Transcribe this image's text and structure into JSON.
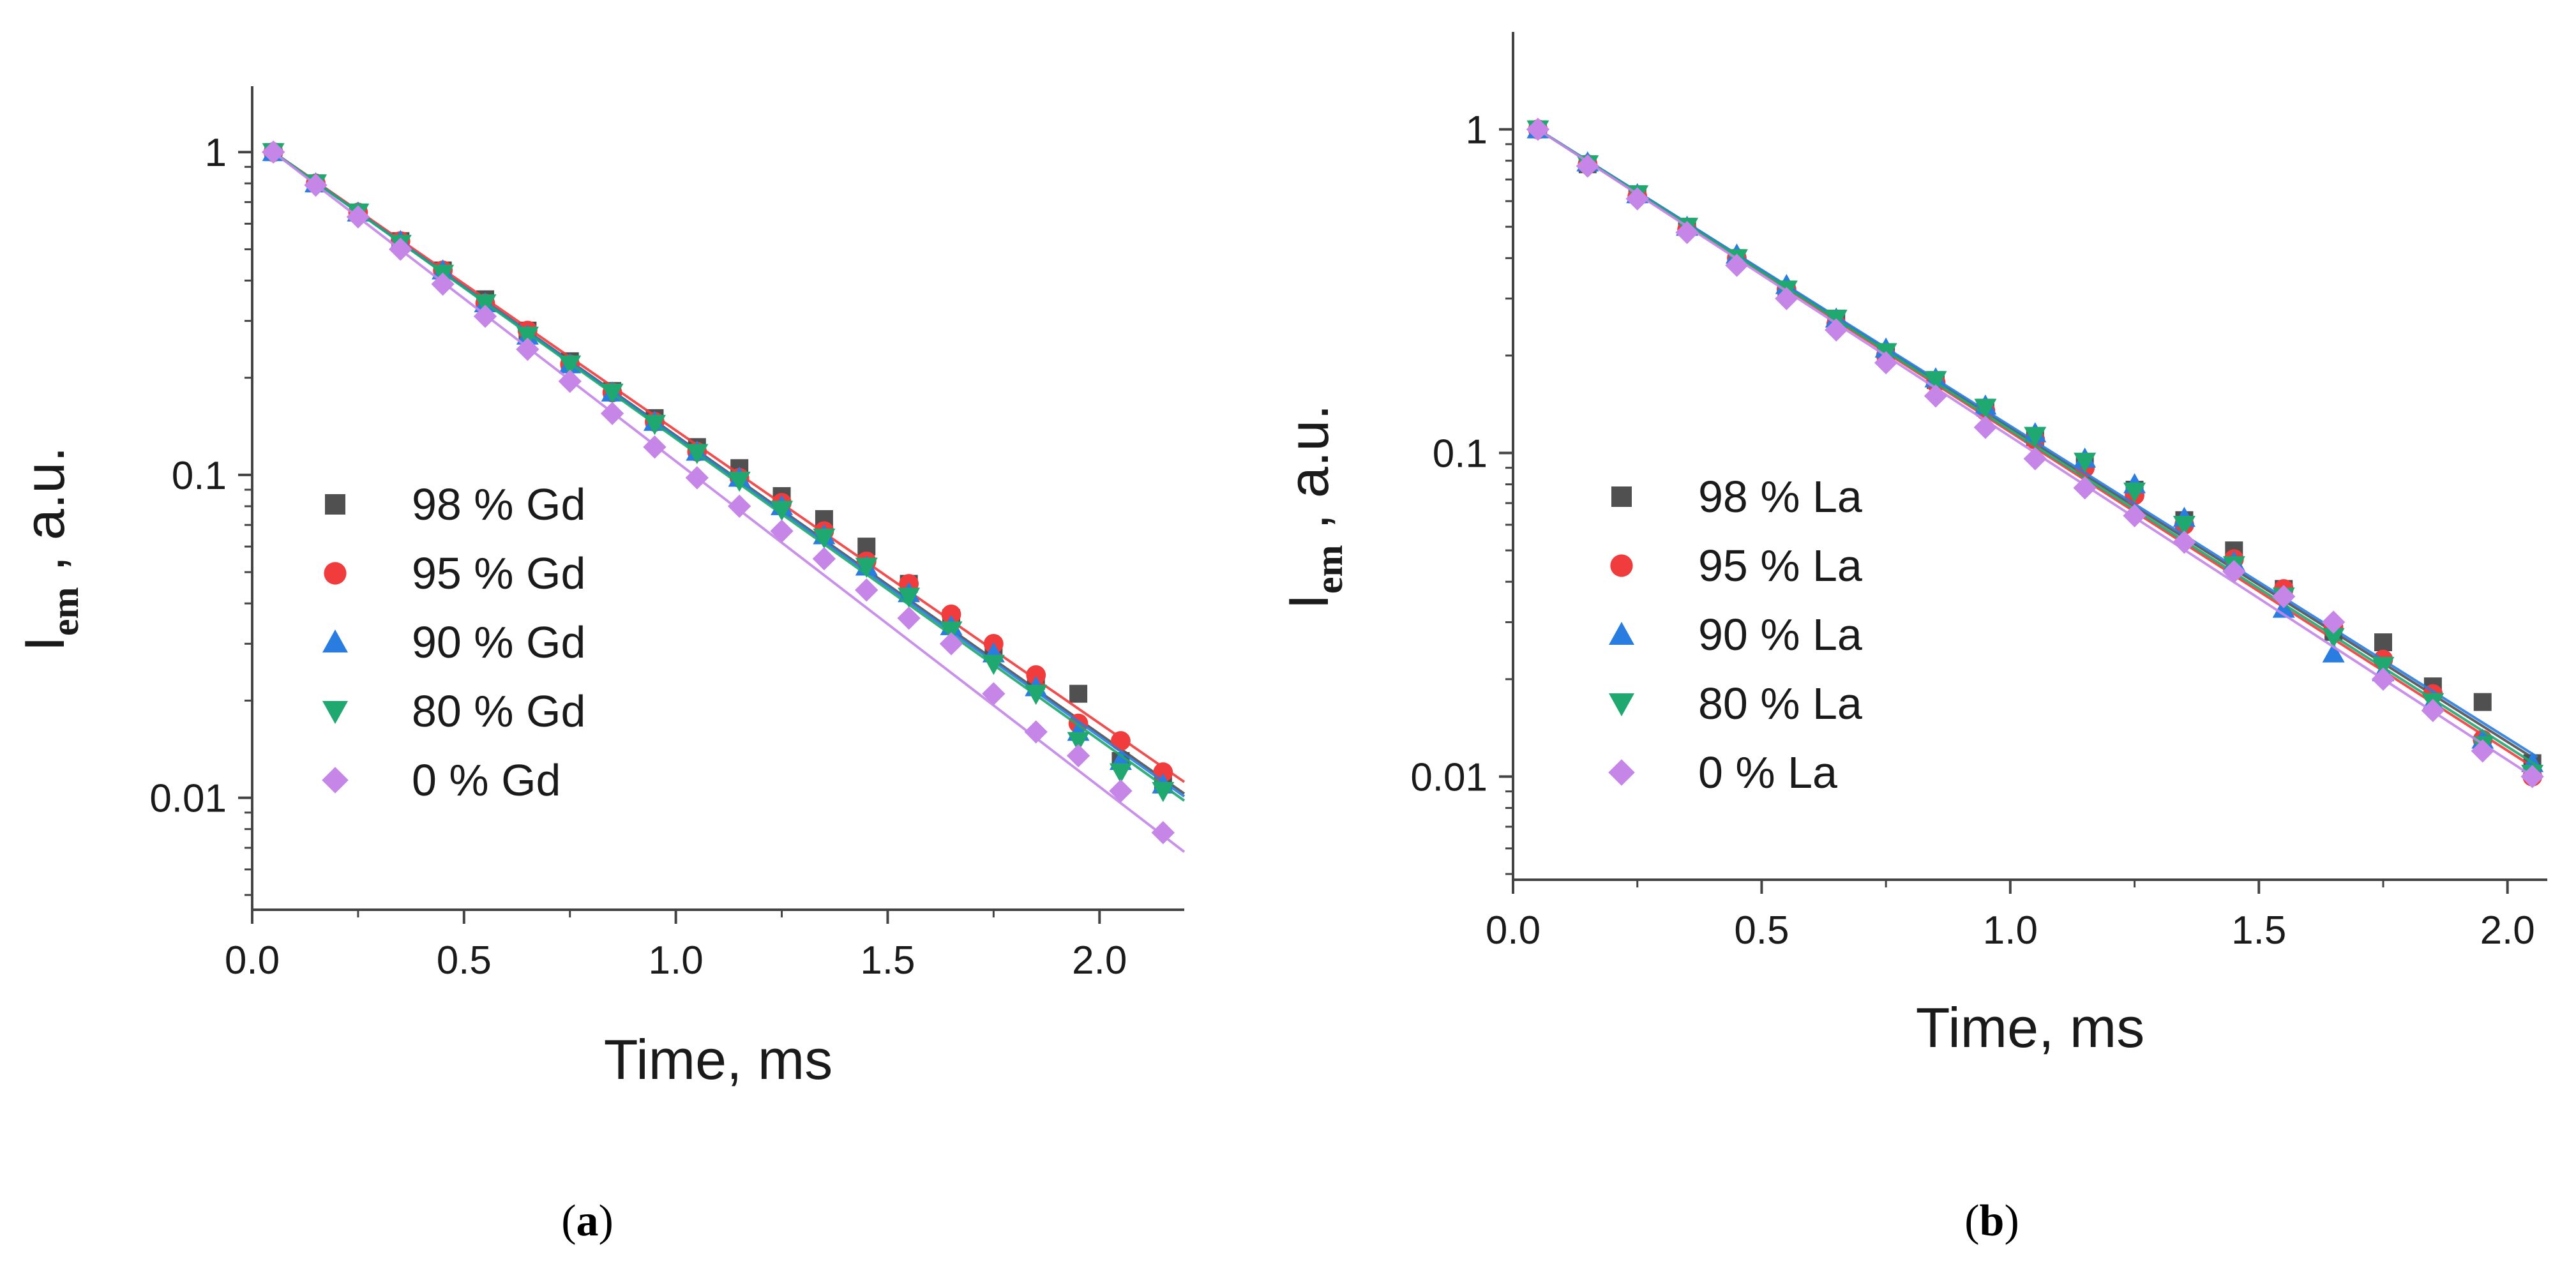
{
  "chart_data": [
    {
      "type": "scatter",
      "panel_label": "a",
      "xlabel": "Time, ms",
      "ylabel_main": "I",
      "ylabel_sub": "em",
      "ylabel_rest": " , a.u.",
      "xlim": [
        0.0,
        2.2
      ],
      "ylim": [
        0.0045,
        1.6
      ],
      "yscale": "log",
      "xticks": [
        0.0,
        0.5,
        1.0,
        1.5,
        2.0
      ],
      "xtick_labels": [
        "0.0",
        "0.5",
        "1.0",
        "1.5",
        "2.0"
      ],
      "yticks": [
        1,
        0.1,
        0.01
      ],
      "ytick_labels": [
        "1",
        "0.1",
        "0.01"
      ],
      "grid": false,
      "legend_position": "lower-left",
      "series": [
        {
          "name": "98 % Gd",
          "marker": "square",
          "color": "#505050",
          "x": [
            0.05,
            0.15,
            0.25,
            0.35,
            0.45,
            0.55,
            0.65,
            0.75,
            0.85,
            0.95,
            1.05,
            1.15,
            1.25,
            1.35,
            1.45,
            1.55,
            1.65,
            1.75,
            1.85,
            1.95,
            2.05,
            2.15
          ],
          "y": [
            1.0,
            0.8,
            0.65,
            0.53,
            0.43,
            0.35,
            0.28,
            0.225,
            0.182,
            0.15,
            0.122,
            0.105,
            0.086,
            0.073,
            0.06,
            0.046,
            0.036,
            0.029,
            0.023,
            0.021,
            0.013,
            0.011
          ],
          "fit": [
            [
              0.05,
              1.0
            ],
            [
              2.2,
              0.0103
            ]
          ]
        },
        {
          "name": "95 % Gd",
          "marker": "circle",
          "color": "#f03c3c",
          "x": [
            0.05,
            0.15,
            0.25,
            0.35,
            0.45,
            0.55,
            0.65,
            0.75,
            0.85,
            0.95,
            1.05,
            1.15,
            1.25,
            1.35,
            1.45,
            1.55,
            1.65,
            1.75,
            1.85,
            1.95,
            2.05,
            2.15
          ],
          "y": [
            1.0,
            0.8,
            0.65,
            0.53,
            0.43,
            0.34,
            0.28,
            0.22,
            0.18,
            0.146,
            0.118,
            0.098,
            0.082,
            0.067,
            0.054,
            0.046,
            0.037,
            0.03,
            0.024,
            0.017,
            0.015,
            0.012
          ],
          "fit": [
            [
              0.05,
              1.0
            ],
            [
              2.2,
              0.0112
            ]
          ]
        },
        {
          "name": "90 % Gd",
          "marker": "triangle-up",
          "color": "#2a7de0",
          "x": [
            0.05,
            0.15,
            0.25,
            0.35,
            0.45,
            0.55,
            0.65,
            0.75,
            0.85,
            0.95,
            1.05,
            1.15,
            1.25,
            1.35,
            1.45,
            1.55,
            1.65,
            1.75,
            1.85,
            1.95,
            2.05,
            2.15
          ],
          "y": [
            1.0,
            0.8,
            0.65,
            0.53,
            0.43,
            0.34,
            0.27,
            0.22,
            0.18,
            0.146,
            0.118,
            0.098,
            0.08,
            0.065,
            0.052,
            0.043,
            0.034,
            0.028,
            0.022,
            0.016,
            0.013,
            0.011
          ],
          "fit": [
            [
              0.05,
              1.0
            ],
            [
              2.2,
              0.0101
            ]
          ]
        },
        {
          "name": "80 % Gd",
          "marker": "triangle-down",
          "color": "#1fa86f",
          "x": [
            0.05,
            0.15,
            0.25,
            0.35,
            0.45,
            0.55,
            0.65,
            0.75,
            0.85,
            0.95,
            1.05,
            1.15,
            1.25,
            1.35,
            1.45,
            1.55,
            1.65,
            1.75,
            1.85,
            1.95,
            2.05,
            2.15
          ],
          "y": [
            1.0,
            0.8,
            0.65,
            0.52,
            0.42,
            0.34,
            0.27,
            0.22,
            0.18,
            0.144,
            0.117,
            0.096,
            0.078,
            0.064,
            0.052,
            0.042,
            0.033,
            0.026,
            0.021,
            0.015,
            0.012,
            0.0105
          ],
          "fit": [
            [
              0.05,
              1.0
            ],
            [
              2.2,
              0.0098
            ]
          ]
        },
        {
          "name": "0 % Gd",
          "marker": "diamond",
          "color": "#c586e8",
          "x": [
            0.05,
            0.15,
            0.25,
            0.35,
            0.45,
            0.55,
            0.65,
            0.75,
            0.85,
            0.95,
            1.05,
            1.15,
            1.25,
            1.35,
            1.45,
            1.55,
            1.65,
            1.75,
            1.85,
            1.95,
            2.05,
            2.15
          ],
          "y": [
            1.0,
            0.79,
            0.63,
            0.5,
            0.39,
            0.31,
            0.245,
            0.195,
            0.155,
            0.122,
            0.098,
            0.08,
            0.067,
            0.055,
            0.044,
            0.036,
            0.03,
            0.021,
            0.016,
            0.0135,
            0.0105,
            0.0078
          ],
          "fit": [
            [
              0.05,
              1.0
            ],
            [
              2.2,
              0.0068
            ]
          ]
        }
      ]
    },
    {
      "type": "scatter",
      "panel_label": "b",
      "xlabel": "Time, ms",
      "ylabel_main": "I",
      "ylabel_sub": "em",
      "ylabel_rest": " , a.u.",
      "xlim": [
        0.0,
        2.08
      ],
      "ylim": [
        0.0048,
        2.0
      ],
      "yscale": "log",
      "xticks": [
        0.0,
        0.5,
        1.0,
        1.5,
        2.0
      ],
      "xtick_labels": [
        "0.0",
        "0.5",
        "1.0",
        "1.5",
        "2.0"
      ],
      "yticks": [
        1,
        0.1,
        0.01
      ],
      "ytick_labels": [
        "1",
        "0.1",
        "0.01"
      ],
      "grid": false,
      "legend_position": "lower-left",
      "series": [
        {
          "name": "98 % La",
          "marker": "square",
          "color": "#505050",
          "x": [
            0.05,
            0.15,
            0.25,
            0.35,
            0.45,
            0.55,
            0.65,
            0.75,
            0.85,
            0.95,
            1.05,
            1.15,
            1.25,
            1.35,
            1.45,
            1.55,
            1.65,
            1.75,
            1.85,
            1.95,
            2.05
          ],
          "y": [
            1.0,
            0.78,
            0.63,
            0.5,
            0.4,
            0.32,
            0.26,
            0.205,
            0.168,
            0.138,
            0.112,
            0.093,
            0.077,
            0.062,
            0.05,
            0.038,
            0.028,
            0.026,
            0.019,
            0.017,
            0.011
          ],
          "fit": [
            [
              0.05,
              1.0
            ],
            [
              2.06,
              0.0112
            ]
          ]
        },
        {
          "name": "95 % La",
          "marker": "circle",
          "color": "#f03c3c",
          "x": [
            0.05,
            0.15,
            0.25,
            0.35,
            0.45,
            0.55,
            0.65,
            0.75,
            0.85,
            0.95,
            1.05,
            1.15,
            1.25,
            1.35,
            1.45,
            1.55,
            1.65,
            1.75,
            1.85,
            1.95,
            2.05
          ],
          "y": [
            1.0,
            0.78,
            0.62,
            0.49,
            0.4,
            0.32,
            0.25,
            0.2,
            0.165,
            0.135,
            0.11,
            0.09,
            0.074,
            0.06,
            0.047,
            0.038,
            0.029,
            0.023,
            0.018,
            0.013,
            0.01
          ],
          "fit": [
            [
              0.05,
              1.0
            ],
            [
              2.06,
              0.0105
            ]
          ]
        },
        {
          "name": "90 % La",
          "marker": "triangle-up",
          "color": "#2a7de0",
          "x": [
            0.05,
            0.15,
            0.25,
            0.35,
            0.45,
            0.55,
            0.65,
            0.75,
            0.85,
            0.95,
            1.05,
            1.15,
            1.25,
            1.35,
            1.45,
            1.55,
            1.65,
            1.75,
            1.85,
            1.95,
            2.05
          ],
          "y": [
            1.0,
            0.79,
            0.63,
            0.5,
            0.41,
            0.33,
            0.26,
            0.21,
            0.17,
            0.14,
            0.115,
            0.096,
            0.08,
            0.063,
            0.046,
            0.033,
            0.024,
            0.021,
            0.017,
            0.013,
            0.011
          ],
          "fit": [
            [
              0.05,
              1.0
            ],
            [
              2.06,
              0.0115
            ]
          ]
        },
        {
          "name": "80 % La",
          "marker": "triangle-down",
          "color": "#1fa86f",
          "x": [
            0.05,
            0.15,
            0.25,
            0.35,
            0.45,
            0.55,
            0.65,
            0.75,
            0.85,
            0.95,
            1.05,
            1.15,
            1.25,
            1.35,
            1.45,
            1.55,
            1.65,
            1.75,
            1.85,
            1.95,
            2.05
          ],
          "y": [
            1.0,
            0.78,
            0.63,
            0.5,
            0.4,
            0.32,
            0.26,
            0.205,
            0.168,
            0.138,
            0.113,
            0.094,
            0.076,
            0.06,
            0.045,
            0.036,
            0.027,
            0.022,
            0.017,
            0.0125,
            0.0102
          ],
          "fit": [
            [
              0.05,
              1.0
            ],
            [
              2.06,
              0.0108
            ]
          ]
        },
        {
          "name": "0 % La",
          "marker": "diamond",
          "color": "#c586e8",
          "x": [
            0.05,
            0.15,
            0.25,
            0.35,
            0.45,
            0.55,
            0.65,
            0.75,
            0.85,
            0.95,
            1.05,
            1.15,
            1.25,
            1.35,
            1.45,
            1.55,
            1.65,
            1.75,
            1.85,
            1.95,
            2.05
          ],
          "y": [
            1.0,
            0.77,
            0.61,
            0.48,
            0.38,
            0.3,
            0.24,
            0.19,
            0.15,
            0.12,
            0.096,
            0.078,
            0.064,
            0.053,
            0.043,
            0.036,
            0.03,
            0.02,
            0.016,
            0.012,
            0.01
          ],
          "fit": [
            [
              0.05,
              1.0
            ],
            [
              2.06,
              0.0098
            ]
          ]
        }
      ]
    }
  ]
}
